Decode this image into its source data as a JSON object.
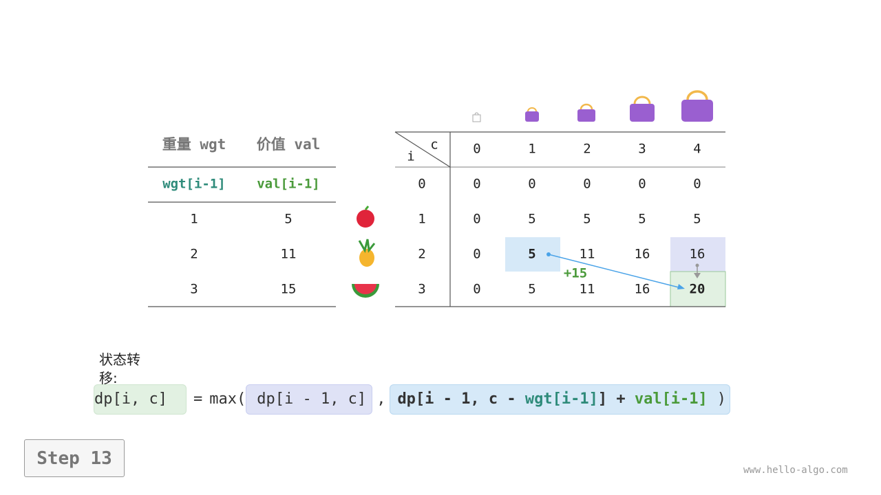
{
  "items_table": {
    "headers": [
      "重量 wgt",
      "价值 val"
    ],
    "subheaders": [
      "wgt[i-1]",
      "val[i-1]"
    ],
    "rows": [
      [
        1,
        5
      ],
      [
        2,
        11
      ],
      [
        3,
        15
      ]
    ]
  },
  "dp_table": {
    "row_label": "i",
    "col_label": "c",
    "columns": [
      0,
      1,
      2,
      3,
      4
    ],
    "rows": [
      {
        "i": 0,
        "cells": [
          0,
          0,
          0,
          0,
          0
        ]
      },
      {
        "i": 1,
        "cells": [
          0,
          5,
          5,
          5,
          5
        ]
      },
      {
        "i": 2,
        "cells": [
          0,
          5,
          11,
          16,
          16
        ]
      },
      {
        "i": 3,
        "cells": [
          0,
          5,
          11,
          16,
          20
        ]
      }
    ]
  },
  "annotation": "+15",
  "formula": {
    "label": "状态转移:",
    "target": "dp[i, c]",
    "equals": "=",
    "max_open": "max(",
    "option_skip": "dp[i - 1, c]",
    "comma": ",",
    "option_take_prefix": "dp[i - 1, c - ",
    "option_take_wgt": "wgt[i-1]",
    "option_take_mid": "] + ",
    "option_take_val": "val[i-1]",
    "max_close": ")"
  },
  "step_button": "Step 13",
  "watermark": "www.hello-algo.com"
}
